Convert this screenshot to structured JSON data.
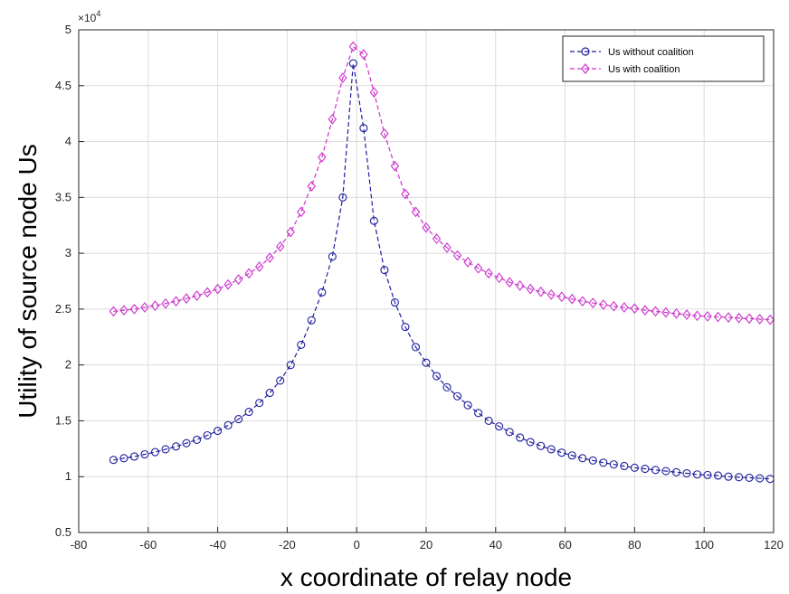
{
  "chart_data": {
    "type": "line",
    "xlabel": "x coordinate of relay node",
    "ylabel": "Utility of source node Us",
    "y_exponent_label": "×10",
    "y_exponent_power": "4",
    "xlim": [
      -80,
      120
    ],
    "ylim": [
      0.5,
      5
    ],
    "y_scale_factor": 10000,
    "xticks": [
      -80,
      -60,
      -40,
      -20,
      0,
      20,
      40,
      60,
      80,
      100,
      120
    ],
    "yticks": [
      0.5,
      1,
      1.5,
      2,
      2.5,
      3,
      3.5,
      4,
      4.5,
      5
    ],
    "xtick_labels": [
      "-80",
      "-60",
      "-40",
      "-20",
      "0",
      "20",
      "40",
      "60",
      "80",
      "100",
      "120"
    ],
    "ytick_labels": [
      "0.5",
      "1",
      "1.5",
      "2",
      "2.5",
      "3",
      "3.5",
      "4",
      "4.5",
      "5"
    ],
    "grid": true,
    "legend_position": "top-right",
    "x": [
      -70,
      -67,
      -64,
      -61,
      -58,
      -55,
      -52,
      -49,
      -46,
      -43,
      -40,
      -37,
      -34,
      -31,
      -28,
      -25,
      -22,
      -19,
      -16,
      -13,
      -10,
      -7,
      -4,
      -1,
      2,
      5,
      8,
      11,
      14,
      17,
      20,
      23,
      26,
      29,
      32,
      35,
      38,
      41,
      44,
      47,
      50,
      53,
      56,
      59,
      62,
      65,
      68,
      71,
      74,
      77,
      80,
      83,
      86,
      89,
      92,
      95,
      98,
      101,
      104,
      107,
      110,
      113,
      116,
      119
    ],
    "series": [
      {
        "name": "Us without coalition",
        "color": "#1f1f9e",
        "marker": "circle",
        "values": [
          11500,
          11650,
          11800,
          12000,
          12200,
          12450,
          12700,
          13000,
          13300,
          13700,
          14100,
          14600,
          15150,
          15800,
          16600,
          17500,
          18600,
          20000,
          21800,
          24000,
          26500,
          29700,
          35000,
          47000,
          41200,
          32900,
          28500,
          25600,
          23400,
          21600,
          20200,
          19000,
          18000,
          17200,
          16400,
          15700,
          15000,
          14500,
          14000,
          13500,
          13100,
          12750,
          12450,
          12150,
          11900,
          11650,
          11450,
          11250,
          11100,
          10950,
          10800,
          10700,
          10600,
          10500,
          10400,
          10300,
          10200,
          10150,
          10100,
          10000,
          9950,
          9900,
          9850,
          9800
        ]
      },
      {
        "name": "Us with coalition",
        "color": "#cc33cc",
        "marker": "diamond",
        "values": [
          24800,
          24900,
          25000,
          25150,
          25300,
          25500,
          25700,
          25950,
          26200,
          26500,
          26800,
          27200,
          27650,
          28200,
          28800,
          29600,
          30600,
          31900,
          33700,
          36000,
          38600,
          42000,
          45700,
          48500,
          47800,
          44400,
          40700,
          37800,
          35300,
          33700,
          32300,
          31300,
          30500,
          29800,
          29200,
          28650,
          28200,
          27800,
          27400,
          27100,
          26800,
          26550,
          26300,
          26100,
          25900,
          25700,
          25550,
          25400,
          25250,
          25150,
          25050,
          24900,
          24800,
          24700,
          24600,
          24500,
          24400,
          24350,
          24300,
          24250,
          24200,
          24150,
          24100,
          24050
        ]
      }
    ]
  }
}
